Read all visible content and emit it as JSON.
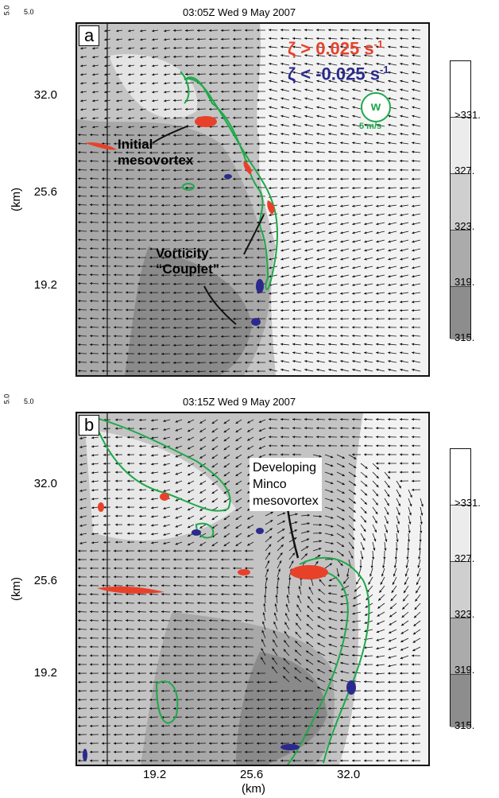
{
  "panel_a": {
    "ref_scale_top": "5.0",
    "ref_scale_side": "5.0",
    "title": "03:05Z Wed  9 May 2007",
    "letter": "a",
    "y_axis_unit": "(km)",
    "y_ticks": [
      "32.0",
      "25.6",
      "19.2"
    ],
    "legend": {
      "pos_label": "ζ >  0.025 s",
      "pos_exp": "-1",
      "pos_color": "#e8412a",
      "neg_label": "ζ < -0.025 s",
      "neg_exp": "-1",
      "neg_color": "#2b2a8c",
      "w_label": "w",
      "w_scale": "5 m/s",
      "w_color": "#1fa94a"
    },
    "annotations": {
      "initial": "Initial\nmesovortex",
      "couplet": "Vorticity\n“Couplet”"
    },
    "colorbar_labels": [
      ">331.",
      "327.",
      "323.",
      "319.",
      "315."
    ]
  },
  "panel_b": {
    "ref_scale_top": "5.0",
    "ref_scale_side": "5.0",
    "title": "03:15Z Wed  9 May 2007",
    "letter": "b",
    "y_axis_unit": "(km)",
    "y_ticks": [
      "32.0",
      "25.6",
      "19.2"
    ],
    "x_ticks": [
      "19.2",
      "25.6",
      "32.0"
    ],
    "x_axis_unit": "(km)",
    "annotation": "Developing\nMinco\nmesovortex",
    "colorbar_labels": [
      ">331.",
      "327.",
      "323.",
      "319.",
      "315."
    ]
  },
  "colors": {
    "vorticity_positive": "#e8412a",
    "vorticity_negative": "#2b2a8c",
    "vertical_velocity": "#1fa94a",
    "shade_315": "#8a8a8a",
    "shade_319": "#a8a8a8",
    "shade_323": "#c4c4c4",
    "shade_327": "#dedede",
    "shade_331": "#ffffff"
  }
}
